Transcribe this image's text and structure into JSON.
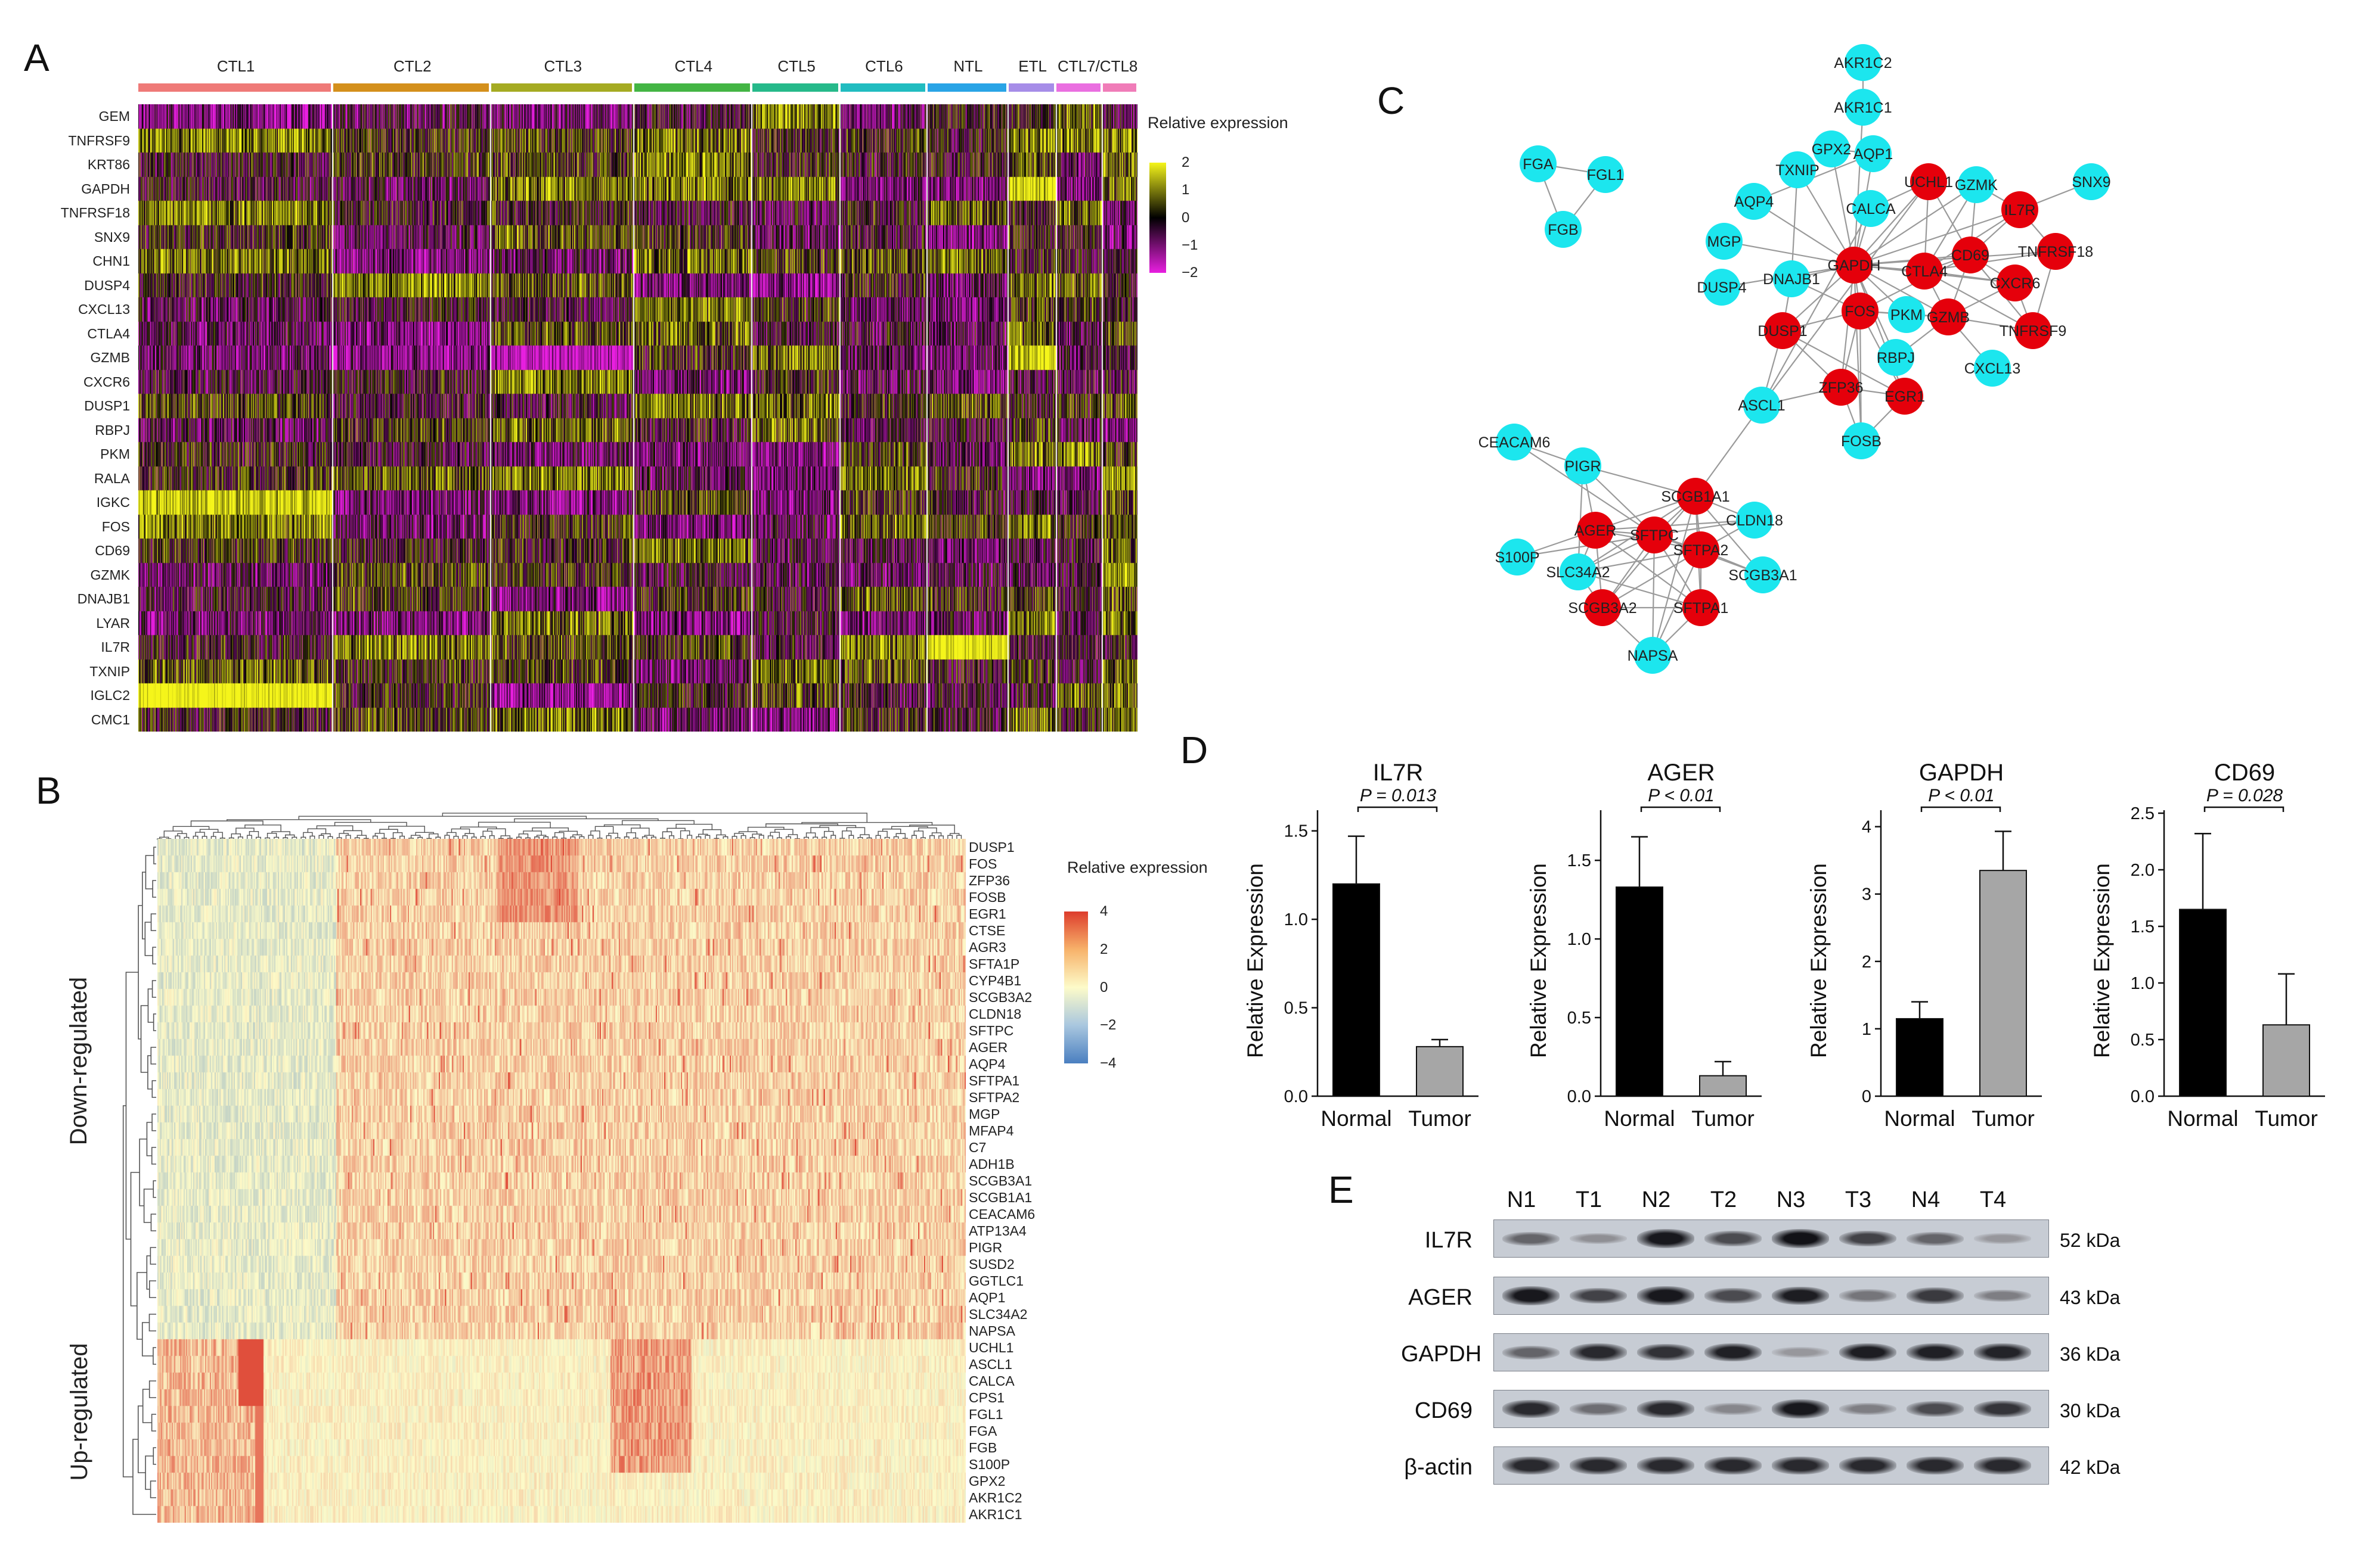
{
  "panel_letters": {
    "a": "A",
    "b": "B",
    "c": "C",
    "d": "D",
    "e": "E"
  },
  "panelA": {
    "clusters": [
      "CTL1",
      "CTL2",
      "CTL3",
      "CTL4",
      "CTL5",
      "CTL6",
      "NTL",
      "ETL",
      "CTL7/CTL8"
    ],
    "cluster_colors": [
      "#ef7a78",
      "#d4901c",
      "#a5ab22",
      "#43b544",
      "#26b98a",
      "#21bcc0",
      "#29a4e6",
      "#a68de8",
      "#ea6fe0",
      "#f07cb8"
    ],
    "genes": [
      "GEM",
      "TNFRSF9",
      "KRT86",
      "GAPDH",
      "TNFRSF18",
      "SNX9",
      "CHN1",
      "DUSP4",
      "CXCL13",
      "CTLA4",
      "GZMB",
      "CXCR6",
      "DUSP1",
      "RBPJ",
      "PKM",
      "RALA",
      "IGKC",
      "FOS",
      "CD69",
      "GZMK",
      "DNAJB1",
      "LYAR",
      "IL7R",
      "TXNIP",
      "IGLC2",
      "CMC1"
    ],
    "legend_title": "Relative expression",
    "legend_ticks": [
      "2",
      "1",
      "0",
      "−1",
      "−2"
    ],
    "colors": {
      "low": "#e81fe0",
      "mid": "#000000",
      "high": "#f5f51a"
    }
  },
  "panelB": {
    "down_label": "Down-regulated",
    "up_label": "Up-regulated",
    "genes": [
      "DUSP1",
      "FOS",
      "ZFP36",
      "FOSB",
      "EGR1",
      "CTSE",
      "AGR3",
      "SFTA1P",
      "CYP4B1",
      "SCGB3A2",
      "CLDN18",
      "SFTPC",
      "AGER",
      "AQP4",
      "SFTPA1",
      "SFTPA2",
      "MGP",
      "MFAP4",
      "C7",
      "ADH1B",
      "SCGB3A1",
      "SCGB1A1",
      "CEACAM6",
      "ATP13A4",
      "PIGR",
      "SUSD2",
      "GGTLC1",
      "AQP1",
      "SLC34A2",
      "NAPSA",
      "UCHL1",
      "ASCL1",
      "CALCA",
      "CPS1",
      "FGL1",
      "FGA",
      "FGB",
      "S100P",
      "GPX2",
      "AKR1C2",
      "AKR1C1"
    ],
    "legend_title": "Relative expression",
    "legend_ticks": [
      "4",
      "2",
      "0",
      "−2",
      "−4"
    ],
    "colors": {
      "low": "#4a7fc0",
      "mid": "#fdfbc9",
      "high": "#dd3c2c"
    }
  },
  "panelC": {
    "colors": {
      "red": "#e5000b",
      "cyan": "#1ce6ee",
      "edge": "#9a9a9a"
    },
    "nodes": [
      {
        "id": "AKR1C2",
        "c": "cyan"
      },
      {
        "id": "AKR1C1",
        "c": "cyan"
      },
      {
        "id": "GPX2",
        "c": "cyan"
      },
      {
        "id": "AQP1",
        "c": "cyan"
      },
      {
        "id": "TXNIP",
        "c": "cyan"
      },
      {
        "id": "UCHL1",
        "c": "red"
      },
      {
        "id": "GZMK",
        "c": "cyan"
      },
      {
        "id": "SNX9",
        "c": "cyan"
      },
      {
        "id": "AQP4",
        "c": "cyan"
      },
      {
        "id": "CALCA",
        "c": "cyan"
      },
      {
        "id": "IL7R",
        "c": "red"
      },
      {
        "id": "MGP",
        "c": "cyan"
      },
      {
        "id": "CD69",
        "c": "red"
      },
      {
        "id": "TNFRSF18",
        "c": "red"
      },
      {
        "id": "GAPDH",
        "c": "red"
      },
      {
        "id": "CTLA4",
        "c": "red"
      },
      {
        "id": "DNAJB1",
        "c": "cyan"
      },
      {
        "id": "CXCR6",
        "c": "red"
      },
      {
        "id": "DUSP4",
        "c": "cyan"
      },
      {
        "id": "FOS",
        "c": "red"
      },
      {
        "id": "PKM",
        "c": "cyan"
      },
      {
        "id": "GZMB",
        "c": "red"
      },
      {
        "id": "TNFRSF9",
        "c": "red"
      },
      {
        "id": "DUSP1",
        "c": "red"
      },
      {
        "id": "RBPJ",
        "c": "cyan"
      },
      {
        "id": "CXCL13",
        "c": "cyan"
      },
      {
        "id": "ZFP36",
        "c": "red"
      },
      {
        "id": "EGR1",
        "c": "red"
      },
      {
        "id": "ASCL1",
        "c": "cyan"
      },
      {
        "id": "FOSB",
        "c": "cyan"
      },
      {
        "id": "FGA",
        "c": "cyan"
      },
      {
        "id": "FGL1",
        "c": "cyan"
      },
      {
        "id": "FGB",
        "c": "cyan"
      },
      {
        "id": "CEACAM6",
        "c": "cyan"
      },
      {
        "id": "PIGR",
        "c": "cyan"
      },
      {
        "id": "SCGB1A1",
        "c": "red"
      },
      {
        "id": "CLDN18",
        "c": "cyan"
      },
      {
        "id": "AGER",
        "c": "red"
      },
      {
        "id": "SFTPC",
        "c": "red"
      },
      {
        "id": "SFTPA2",
        "c": "red"
      },
      {
        "id": "S100P",
        "c": "cyan"
      },
      {
        "id": "SLC34A2",
        "c": "cyan"
      },
      {
        "id": "SCGB3A1",
        "c": "cyan"
      },
      {
        "id": "SCGB3A2",
        "c": "red"
      },
      {
        "id": "SFTPA1",
        "c": "red"
      },
      {
        "id": "NAPSA",
        "c": "cyan"
      }
    ],
    "edges": [
      [
        "FGA",
        "FGL1"
      ],
      [
        "FGA",
        "FGB"
      ],
      [
        "FGL1",
        "FGB"
      ],
      [
        "AKR1C2",
        "AKR1C1"
      ],
      [
        "GAPDH",
        "CTLA4"
      ],
      [
        "GAPDH",
        "CD69"
      ],
      [
        "GAPDH",
        "IL7R"
      ],
      [
        "GAPDH",
        "GZMB"
      ],
      [
        "GAPDH",
        "FOS"
      ],
      [
        "GAPDH",
        "PKM"
      ],
      [
        "GAPDH",
        "DUSP1"
      ],
      [
        "GAPDH",
        "UCHL1"
      ],
      [
        "GAPDH",
        "TXNIP"
      ],
      [
        "GAPDH",
        "AQP4"
      ],
      [
        "GAPDH",
        "MGP"
      ],
      [
        "GAPDH",
        "DNAJB1"
      ],
      [
        "GAPDH",
        "DUSP4"
      ],
      [
        "GAPDH",
        "CALCA"
      ],
      [
        "GAPDH",
        "AQP1"
      ],
      [
        "GAPDH",
        "GPX2"
      ],
      [
        "GAPDH",
        "RBPJ"
      ],
      [
        "GAPDH",
        "ZFP36"
      ],
      [
        "GAPDH",
        "EGR1"
      ],
      [
        "GAPDH",
        "CXCR6"
      ],
      [
        "GAPDH",
        "TNFRSF18"
      ],
      [
        "GAPDH",
        "GZMK"
      ],
      [
        "GAPDH",
        "AKR1C1"
      ],
      [
        "GAPDH",
        "FOSB"
      ],
      [
        "CTLA4",
        "CD69"
      ],
      [
        "CTLA4",
        "IL7R"
      ],
      [
        "CTLA4",
        "GZMB"
      ],
      [
        "CTLA4",
        "CXCR6"
      ],
      [
        "CTLA4",
        "TNFRSF18"
      ],
      [
        "CTLA4",
        "TNFRSF9"
      ],
      [
        "CTLA4",
        "GZMK"
      ],
      [
        "CTLA4",
        "UCHL1"
      ],
      [
        "CD69",
        "IL7R"
      ],
      [
        "CD69",
        "GZMB"
      ],
      [
        "CD69",
        "CXCR6"
      ],
      [
        "CD69",
        "FOS"
      ],
      [
        "CD69",
        "TNFRSF9"
      ],
      [
        "CD69",
        "UCHL1"
      ],
      [
        "CD69",
        "GZMK"
      ],
      [
        "GZMB",
        "CXCR6"
      ],
      [
        "GZMB",
        "TNFRSF9"
      ],
      [
        "GZMB",
        "CXCL13"
      ],
      [
        "GZMB",
        "PKM"
      ],
      [
        "GZMB",
        "RBPJ"
      ],
      [
        "GZMB",
        "FOS"
      ],
      [
        "FOS",
        "DUSP1"
      ],
      [
        "FOS",
        "ZFP36"
      ],
      [
        "FOS",
        "EGR1"
      ],
      [
        "FOS",
        "FOSB"
      ],
      [
        "FOS",
        "PKM"
      ],
      [
        "FOS",
        "DNAJB1"
      ],
      [
        "DUSP1",
        "ZFP36"
      ],
      [
        "DUSP1",
        "EGR1"
      ],
      [
        "DUSP1",
        "DNAJB1"
      ],
      [
        "DUSP1",
        "ASCL1"
      ],
      [
        "ZFP36",
        "EGR1"
      ],
      [
        "ZFP36",
        "FOSB"
      ],
      [
        "ZFP36",
        "ASCL1"
      ],
      [
        "EGR1",
        "FOSB"
      ],
      [
        "IL7R",
        "GZMK"
      ],
      [
        "IL7R",
        "TNFRSF18"
      ],
      [
        "IL7R",
        "SNX9"
      ],
      [
        "CXCR6",
        "TNFRSF9"
      ],
      [
        "TNFRSF18",
        "TNFRSF9"
      ],
      [
        "UCHL1",
        "CALCA"
      ],
      [
        "UCHL1",
        "ASCL1"
      ],
      [
        "CALCA",
        "ASCL1"
      ],
      [
        "AQP1",
        "GPX2"
      ],
      [
        "AQP1",
        "AQP4"
      ],
      [
        "TXNIP",
        "DNAJB1"
      ],
      [
        "ASCL1",
        "SCGB1A1"
      ],
      [
        "SCGB1A1",
        "SFTPC"
      ],
      [
        "SCGB1A1",
        "AGER"
      ],
      [
        "SCGB1A1",
        "SFTPA2"
      ],
      [
        "SCGB1A1",
        "CLDN18"
      ],
      [
        "SCGB1A1",
        "PIGR"
      ],
      [
        "SCGB1A1",
        "SCGB3A2"
      ],
      [
        "SCGB1A1",
        "SLC34A2"
      ],
      [
        "SCGB1A1",
        "SFTPA1"
      ],
      [
        "SCGB1A1",
        "SCGB3A1"
      ],
      [
        "SCGB1A1",
        "NAPSA"
      ],
      [
        "SFTPC",
        "AGER"
      ],
      [
        "SFTPC",
        "SFTPA2"
      ],
      [
        "SFTPC",
        "SFTPA1"
      ],
      [
        "SFTPC",
        "SCGB3A2"
      ],
      [
        "SFTPC",
        "SLC34A2"
      ],
      [
        "SFTPC",
        "NAPSA"
      ],
      [
        "SFTPC",
        "PIGR"
      ],
      [
        "SFTPC",
        "CLDN18"
      ],
      [
        "SFTPC",
        "S100P"
      ],
      [
        "SFTPC",
        "CEACAM6"
      ],
      [
        "SFTPC",
        "SCGB3A1"
      ],
      [
        "AGER",
        "SFTPA2"
      ],
      [
        "AGER",
        "SFTPA1"
      ],
      [
        "AGER",
        "CLDN18"
      ],
      [
        "AGER",
        "S100P"
      ],
      [
        "AGER",
        "SLC34A2"
      ],
      [
        "AGER",
        "PIGR"
      ],
      [
        "AGER",
        "SCGB3A2"
      ],
      [
        "SFTPA2",
        "SFTPA1"
      ],
      [
        "SFTPA2",
        "SCGB3A2"
      ],
      [
        "SFTPA2",
        "NAPSA"
      ],
      [
        "SFTPA2",
        "CLDN18"
      ],
      [
        "SFTPA2",
        "SCGB3A1"
      ],
      [
        "SFTPA2",
        "SLC34A2"
      ],
      [
        "SFTPA1",
        "SCGB3A2"
      ],
      [
        "SFTPA1",
        "NAPSA"
      ],
      [
        "SFTPA1",
        "SLC34A2"
      ],
      [
        "SCGB3A2",
        "SLC34A2"
      ],
      [
        "SCGB3A2",
        "NAPSA"
      ],
      [
        "PIGR",
        "CEACAM6"
      ],
      [
        "PIGR",
        "SLC34A2"
      ]
    ]
  },
  "chart_data": [
    {
      "type": "bar",
      "title": "IL7R",
      "categories": [
        "Normal",
        "Tumor"
      ],
      "values": [
        1.2,
        0.28
      ],
      "error": [
        0.27,
        0.04
      ],
      "colors": [
        "#000000",
        "#a6a6a6"
      ],
      "ylabel": "Relative Expression",
      "ylim": [
        0,
        1.6
      ],
      "yticks": [
        "0.0",
        "0.5",
        "1.0",
        "1.5"
      ],
      "ytick_values": [
        0,
        0.5,
        1.0,
        1.5
      ],
      "pvalue": "P = 0.013"
    },
    {
      "type": "bar",
      "title": "AGER",
      "categories": [
        "Normal",
        "Tumor"
      ],
      "values": [
        1.33,
        0.13
      ],
      "error": [
        0.32,
        0.09
      ],
      "colors": [
        "#000000",
        "#a6a6a6"
      ],
      "ylabel": "Relative Expression",
      "ylim": [
        0,
        1.8
      ],
      "yticks": [
        "0.0",
        "0.5",
        "1.0",
        "1.5"
      ],
      "ytick_values": [
        0,
        0.5,
        1.0,
        1.5
      ],
      "pvalue": "P < 0.01"
    },
    {
      "type": "bar",
      "title": "GAPDH",
      "categories": [
        "Normal",
        "Tumor"
      ],
      "values": [
        1.15,
        3.35
      ],
      "error": [
        0.25,
        0.58
      ],
      "colors": [
        "#000000",
        "#a6a6a6"
      ],
      "ylabel": "Relative Expression",
      "ylim": [
        0,
        4.2
      ],
      "yticks": [
        "0",
        "1",
        "2",
        "3",
        "4"
      ],
      "ytick_values": [
        0,
        1,
        2,
        3,
        4
      ],
      "pvalue": "P < 0.01"
    },
    {
      "type": "bar",
      "title": "CD69",
      "categories": [
        "Normal",
        "Tumor"
      ],
      "values": [
        1.65,
        0.63
      ],
      "error": [
        0.67,
        0.45
      ],
      "colors": [
        "#000000",
        "#a6a6a6"
      ],
      "ylabel": "Relative Expression",
      "ylim": [
        0,
        2.5
      ],
      "yticks": [
        "0.0",
        "0.5",
        "1.0",
        "1.5",
        "2.0",
        "2.5"
      ],
      "ytick_values": [
        0,
        0.5,
        1.0,
        1.5,
        2.0,
        2.5
      ],
      "pvalue": "P = 0.028"
    }
  ],
  "panelE": {
    "lanes": [
      "N1",
      "T1",
      "N2",
      "T2",
      "N3",
      "T3",
      "N4",
      "T4"
    ],
    "proteins": [
      {
        "name": "IL7R",
        "kda": "52 kDa",
        "intensity": [
          0.5,
          0.25,
          0.95,
          0.65,
          0.98,
          0.7,
          0.5,
          0.2
        ]
      },
      {
        "name": "AGER",
        "kda": "43 kDa",
        "intensity": [
          0.95,
          0.7,
          0.95,
          0.65,
          0.92,
          0.4,
          0.75,
          0.35
        ]
      },
      {
        "name": "GAPDH",
        "kda": "36 kDa",
        "intensity": [
          0.5,
          0.85,
          0.8,
          0.9,
          0.2,
          0.92,
          0.9,
          0.88
        ]
      },
      {
        "name": "CD69",
        "kda": "30 kDa",
        "intensity": [
          0.85,
          0.45,
          0.85,
          0.3,
          0.95,
          0.35,
          0.65,
          0.78
        ]
      },
      {
        "name": "β-actin",
        "kda": "42 kDa",
        "intensity": [
          0.85,
          0.85,
          0.85,
          0.85,
          0.85,
          0.85,
          0.85,
          0.85
        ]
      }
    ]
  }
}
